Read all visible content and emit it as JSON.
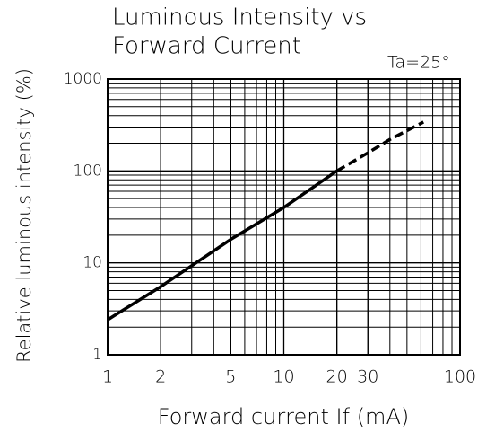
{
  "chart_data": {
    "type": "line",
    "title": [
      "Luminous Intensity vs",
      "Forward Current"
    ],
    "annotation": "Ta=25°",
    "x_label": "Forward current If (mA)",
    "y_label": "Relative luminous intensity (%)",
    "log_x": true,
    "log_y": true,
    "grid": true,
    "minor_grid": true,
    "xlim": [
      1,
      100
    ],
    "ylim": [
      1,
      1000
    ],
    "xticks": [
      1,
      2,
      5,
      10,
      20,
      30,
      100
    ],
    "yticks": [
      1,
      10,
      100,
      1000
    ],
    "x": [
      1,
      2,
      5,
      10,
      20,
      30,
      40,
      62
    ],
    "series": [
      {
        "color": "#000000",
        "style": "solid",
        "values": [
          2.4,
          5.5,
          18,
          40,
          100,
          null,
          null,
          null
        ]
      },
      {
        "color": "#000000",
        "style": "dashed",
        "values": [
          null,
          null,
          null,
          null,
          100,
          157,
          220,
          340
        ]
      }
    ]
  }
}
